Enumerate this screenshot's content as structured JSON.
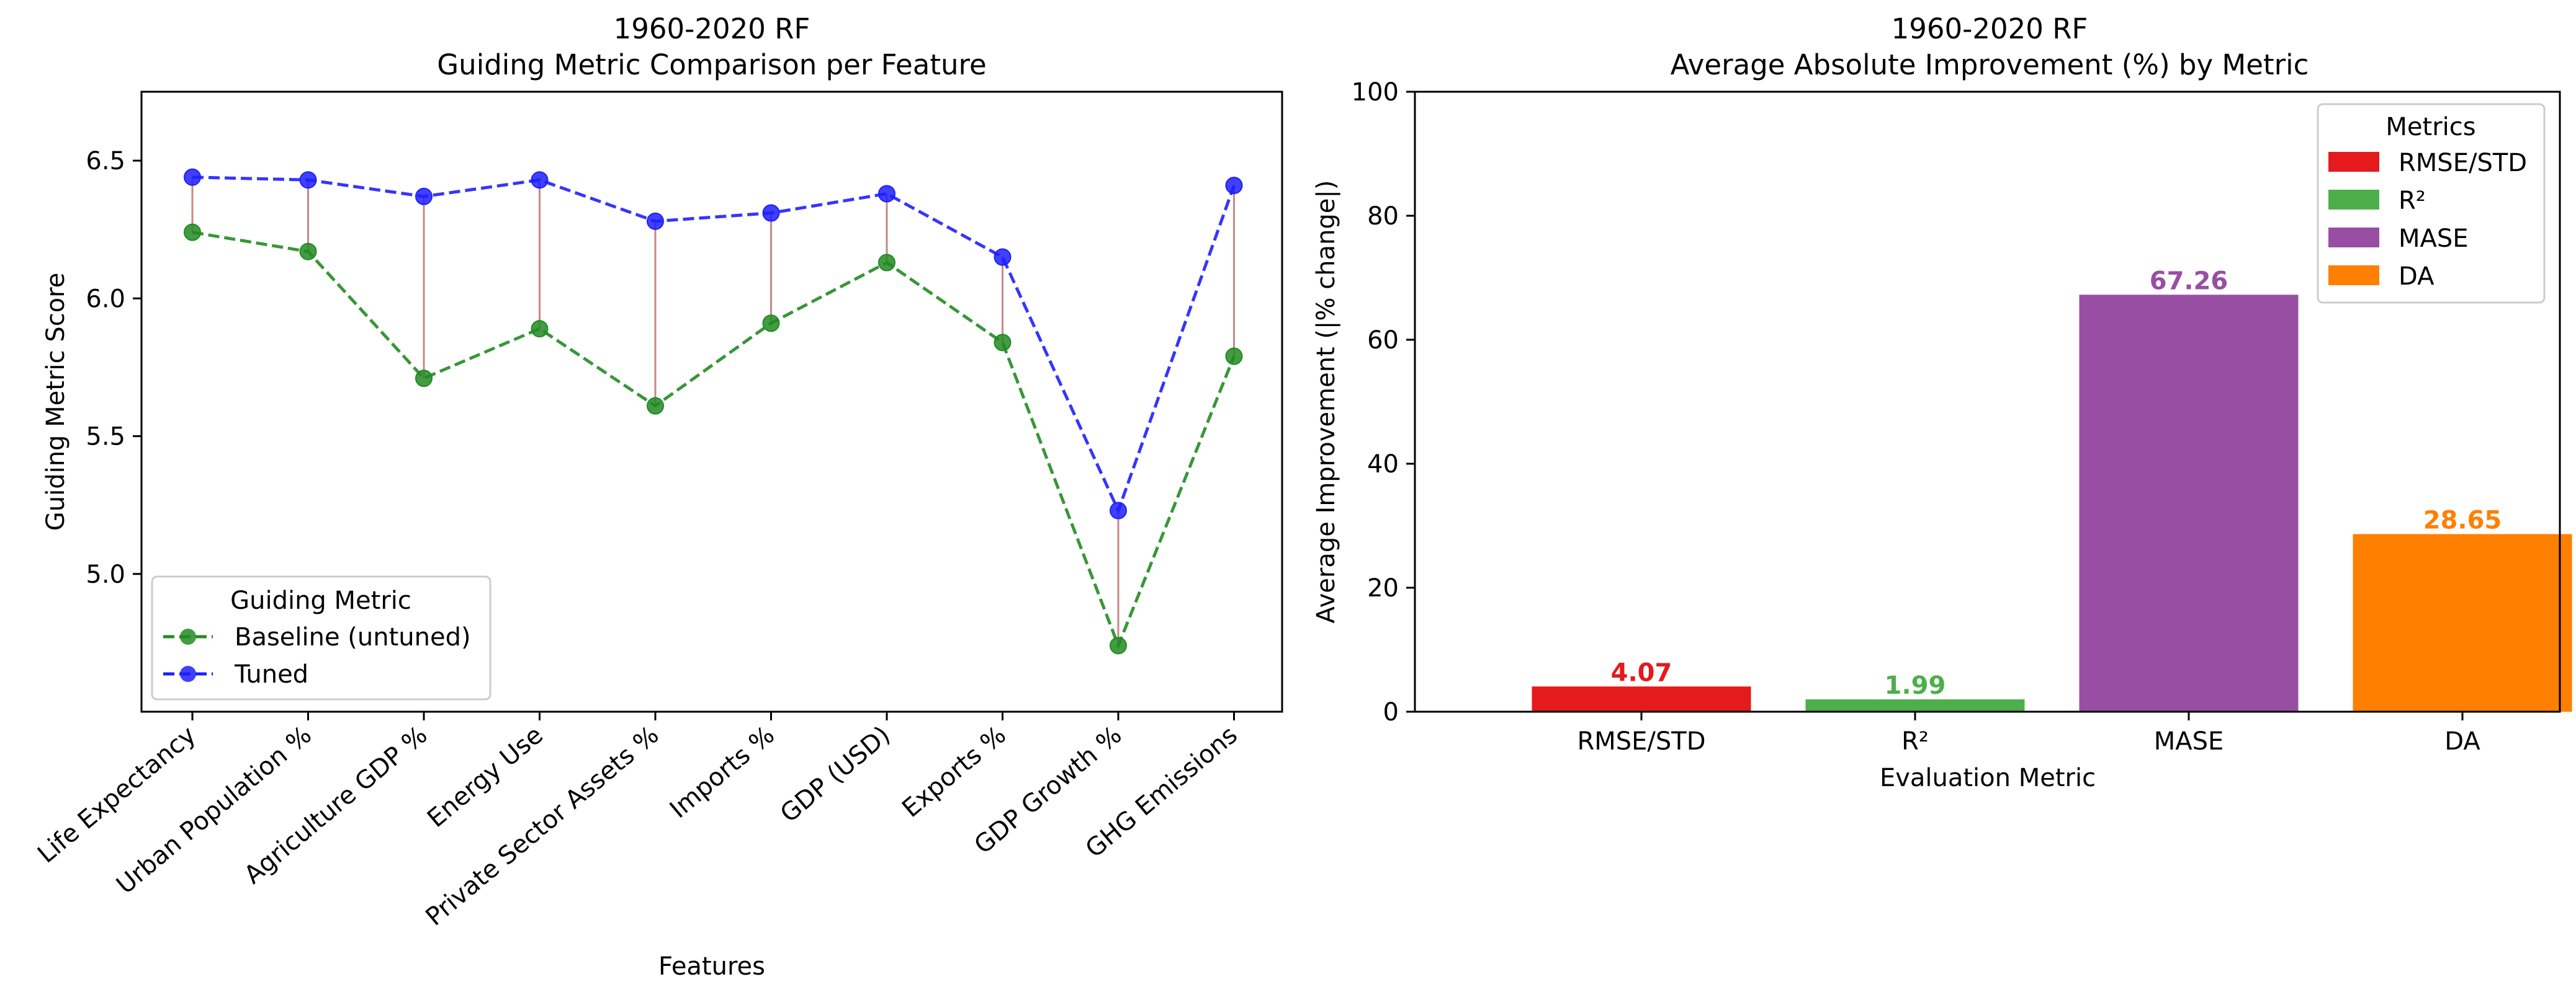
{
  "chart_data": [
    {
      "type": "line",
      "title": "1960-2020 RF",
      "subtitle": "Guiding Metric Comparison per Feature",
      "xlabel": "Features",
      "ylabel": "Guiding Metric Score",
      "ylim": [
        4.5,
        6.75
      ],
      "yticks": [
        5.0,
        5.5,
        6.0,
        6.5
      ],
      "ytick_labels": [
        "5.0",
        "5.5",
        "6.0",
        "6.5"
      ],
      "grid": false,
      "categories": [
        "Life Expectancy",
        "Urban Population %",
        "Agriculture GDP %",
        "Energy Use",
        "Private Sector Assets %",
        "Imports %",
        "GDP (USD)",
        "Exports %",
        "GDP Growth %",
        "GHG Emissions"
      ],
      "series": [
        {
          "name": "Baseline (untuned)",
          "color": "#228b22",
          "values": [
            6.24,
            6.17,
            5.71,
            5.89,
            5.61,
            5.91,
            6.13,
            5.84,
            4.74,
            5.79
          ]
        },
        {
          "name": "Tuned",
          "color": "#1f1fff",
          "values": [
            6.44,
            6.43,
            6.37,
            6.43,
            6.28,
            6.31,
            6.38,
            6.15,
            5.23,
            6.41
          ]
        }
      ],
      "connector_color": "#c98686",
      "legend": {
        "title": "Guiding Metric",
        "placement": "lower-left"
      }
    },
    {
      "type": "bar",
      "title": "1960-2020 RF",
      "subtitle": "Average Absolute Improvement (%) by Metric",
      "xlabel": "Evaluation Metric",
      "ylabel": "Average Improvement (|% change|)",
      "ylim": [
        0,
        100
      ],
      "yticks": [
        0,
        20,
        40,
        60,
        80,
        100
      ],
      "ytick_labels": [
        "0",
        "20",
        "40",
        "60",
        "80",
        "100"
      ],
      "grid": false,
      "categories": [
        "RMSE/STD",
        "R²",
        "MASE",
        "DA"
      ],
      "values": [
        4.07,
        1.99,
        67.26,
        28.65
      ],
      "value_labels": [
        "4.07",
        "1.99",
        "67.26",
        "28.65"
      ],
      "colors": [
        "#e41a1c",
        "#4daf4a",
        "#984ea3",
        "#ff7f00"
      ],
      "legend": {
        "title": "Metrics",
        "placement": "top-right",
        "entries": [
          "RMSE/STD",
          "R²",
          "MASE",
          "DA"
        ]
      }
    }
  ]
}
